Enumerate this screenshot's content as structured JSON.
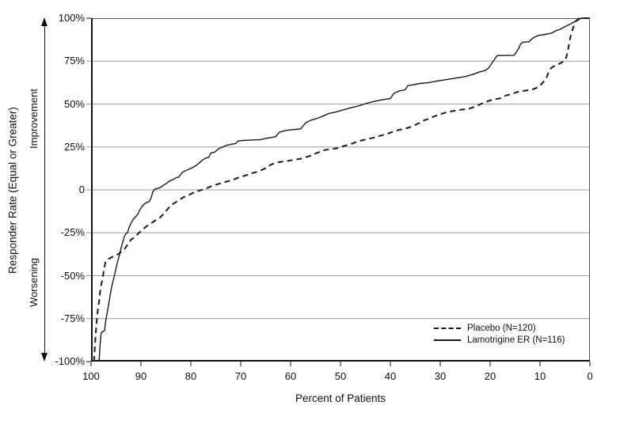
{
  "colors": {
    "background": "#ffffff",
    "line_color": "#1a1a1a",
    "grid_color": "#9e9e9e",
    "axis_color": "#111111",
    "box_color": "#555555"
  },
  "chart_data": {
    "type": "line",
    "title": "",
    "xlabel": "Percent of Patients",
    "ylabel": "Responder Rate (Equal or Greater)",
    "ylabel_upper": "Improvement",
    "ylabel_lower": "Worsening",
    "grid": true,
    "x_axis": {
      "min": 0,
      "max": 100,
      "reversed": true,
      "tick_values": [
        100,
        90,
        80,
        70,
        60,
        50,
        40,
        30,
        20,
        10,
        0
      ],
      "tick_labels": [
        "100",
        "90",
        "80",
        "70",
        "60",
        "50",
        "40",
        "30",
        "20",
        "10",
        "0"
      ]
    },
    "y_axis": {
      "min": -100,
      "max": 100,
      "tick_values": [
        100,
        75,
        50,
        25,
        0,
        -25,
        -50,
        -75,
        -100
      ],
      "tick_labels": [
        "100%",
        "75%",
        "50%",
        "25%",
        "0",
        "-25%",
        "-50%",
        "-75%",
        "-100%"
      ]
    },
    "legend": {
      "position": "inside-bottom-right",
      "entries": [
        {
          "label": "Placebo (N=120)",
          "style": "dashed"
        },
        {
          "label": "Lamotrigine ER (N=116)",
          "style": "solid"
        }
      ]
    },
    "series": [
      {
        "name": "Placebo (N=120)",
        "style": "dashed",
        "points": [
          [
            99.4,
            -100
          ],
          [
            99.2,
            -90
          ],
          [
            99.0,
            -81
          ],
          [
            98.8,
            -74
          ],
          [
            98.6,
            -69
          ],
          [
            98.4,
            -65
          ],
          [
            98.2,
            -60
          ],
          [
            98.0,
            -56
          ],
          [
            97.8,
            -53
          ],
          [
            97.6,
            -50
          ],
          [
            97.4,
            -46
          ],
          [
            97.1,
            -42
          ],
          [
            96.7,
            -40.5
          ],
          [
            96.0,
            -39.5
          ],
          [
            95.3,
            -38.5
          ],
          [
            94.6,
            -37.5
          ],
          [
            93.9,
            -36
          ],
          [
            93.3,
            -34.5
          ],
          [
            92.7,
            -32
          ],
          [
            92.0,
            -29
          ],
          [
            91.2,
            -27.5
          ],
          [
            90.4,
            -25
          ],
          [
            89.6,
            -23
          ],
          [
            88.8,
            -21
          ],
          [
            88.0,
            -19.5
          ],
          [
            87.1,
            -17.8
          ],
          [
            86.2,
            -16.2
          ],
          [
            85.3,
            -13.5
          ],
          [
            84.6,
            -11
          ],
          [
            84.0,
            -9
          ],
          [
            83.2,
            -7.5
          ],
          [
            82.4,
            -6
          ],
          [
            81.4,
            -4.2
          ],
          [
            80.4,
            -3
          ],
          [
            79.4,
            -1.5
          ],
          [
            78.4,
            -0.5
          ],
          [
            77.6,
            0.2
          ],
          [
            76.6,
            1.2
          ],
          [
            75.6,
            2.5
          ],
          [
            74.6,
            3.3
          ],
          [
            73.6,
            4.2
          ],
          [
            72.6,
            5
          ],
          [
            71.6,
            5.8
          ],
          [
            70.6,
            7
          ],
          [
            69.6,
            7.9
          ],
          [
            68.6,
            8.8
          ],
          [
            67.6,
            9.8
          ],
          [
            66.6,
            10.6
          ],
          [
            65.6,
            11.8
          ],
          [
            64.8,
            13
          ],
          [
            64.0,
            14.6
          ],
          [
            63.0,
            15.8
          ],
          [
            62.0,
            16.3
          ],
          [
            61.0,
            16.6
          ],
          [
            60.0,
            17.2
          ],
          [
            59.0,
            17.7
          ],
          [
            58.0,
            18.1
          ],
          [
            57.0,
            19
          ],
          [
            56.0,
            19.9
          ],
          [
            55.0,
            21.2
          ],
          [
            54.0,
            22.3
          ],
          [
            53.2,
            23.2
          ],
          [
            52.4,
            23.6
          ],
          [
            51.6,
            23.9
          ],
          [
            50.8,
            24.2
          ],
          [
            50.0,
            25
          ],
          [
            49.0,
            25.8
          ],
          [
            48.0,
            26.6
          ],
          [
            47.0,
            27.7
          ],
          [
            46.0,
            28.6
          ],
          [
            45.0,
            29.3
          ],
          [
            44.2,
            29.8
          ],
          [
            43.2,
            30.5
          ],
          [
            42.2,
            31.4
          ],
          [
            41.2,
            32.2
          ],
          [
            40.2,
            33.1
          ],
          [
            39.2,
            34.3
          ],
          [
            38.2,
            35
          ],
          [
            37.2,
            35.5
          ],
          [
            36.2,
            36.4
          ],
          [
            35.2,
            37.5
          ],
          [
            34.2,
            39
          ],
          [
            33.2,
            40.5
          ],
          [
            32.2,
            41.5
          ],
          [
            31.2,
            42.8
          ],
          [
            30.2,
            43.8
          ],
          [
            29.2,
            44.8
          ],
          [
            28.2,
            45.5
          ],
          [
            27.2,
            46.1
          ],
          [
            26.2,
            46.6
          ],
          [
            25.2,
            46.9
          ],
          [
            24.2,
            47.3
          ],
          [
            23.2,
            48.3
          ],
          [
            22.4,
            49.3
          ],
          [
            21.7,
            50.2
          ],
          [
            20.8,
            51.3
          ],
          [
            19.8,
            52.3
          ],
          [
            18.8,
            52.9
          ],
          [
            18.0,
            53.3
          ],
          [
            17.0,
            54.8
          ],
          [
            16.0,
            55.6
          ],
          [
            15.0,
            56.6
          ],
          [
            14.0,
            57.4
          ],
          [
            13.0,
            57.8
          ],
          [
            12.0,
            58.2
          ],
          [
            11.0,
            59
          ],
          [
            10.3,
            60
          ],
          [
            9.6,
            62
          ],
          [
            9.0,
            64
          ],
          [
            8.6,
            66
          ],
          [
            8.3,
            68.5
          ],
          [
            7.9,
            70.5
          ],
          [
            7.4,
            71.8
          ],
          [
            6.8,
            72.6
          ],
          [
            6.2,
            73.3
          ],
          [
            5.6,
            74.3
          ],
          [
            5.0,
            75.5
          ],
          [
            4.7,
            77.5
          ],
          [
            4.5,
            80
          ],
          [
            4.3,
            83
          ],
          [
            4.1,
            86
          ],
          [
            3.9,
            89
          ],
          [
            3.7,
            91.5
          ],
          [
            3.4,
            94
          ],
          [
            3.1,
            96.5
          ],
          [
            2.8,
            98.3
          ],
          [
            2.4,
            99.5
          ],
          [
            2.0,
            100
          ],
          [
            0,
            100
          ]
        ]
      },
      {
        "name": "Lamotrigine ER (N=116)",
        "style": "solid",
        "points": [
          [
            98.4,
            -100
          ],
          [
            98.2,
            -91
          ],
          [
            98.0,
            -84
          ],
          [
            97.9,
            -83
          ],
          [
            97.3,
            -82
          ],
          [
            97.1,
            -77
          ],
          [
            96.8,
            -72
          ],
          [
            96.5,
            -67
          ],
          [
            96.2,
            -62
          ],
          [
            95.9,
            -57
          ],
          [
            95.5,
            -52
          ],
          [
            95.1,
            -47
          ],
          [
            94.7,
            -42
          ],
          [
            94.3,
            -38
          ],
          [
            94.0,
            -34
          ],
          [
            93.6,
            -30
          ],
          [
            93.3,
            -27
          ],
          [
            93.0,
            -25.5
          ],
          [
            92.7,
            -25
          ],
          [
            92.4,
            -22
          ],
          [
            92.0,
            -19.5
          ],
          [
            91.5,
            -17
          ],
          [
            91.0,
            -15.5
          ],
          [
            90.6,
            -14
          ],
          [
            90.2,
            -11.5
          ],
          [
            89.6,
            -9
          ],
          [
            89.0,
            -7.5
          ],
          [
            88.4,
            -7
          ],
          [
            88.0,
            -5
          ],
          [
            87.6,
            -1
          ],
          [
            87.2,
            0.5
          ],
          [
            86.4,
            1
          ],
          [
            85.8,
            2
          ],
          [
            85.4,
            3
          ],
          [
            85.0,
            3.5
          ],
          [
            84.4,
            5
          ],
          [
            83.6,
            6
          ],
          [
            83.0,
            7
          ],
          [
            82.4,
            7.5
          ],
          [
            81.8,
            10
          ],
          [
            81.2,
            11
          ],
          [
            80.4,
            12
          ],
          [
            79.6,
            13
          ],
          [
            78.8,
            14.5
          ],
          [
            78.2,
            16
          ],
          [
            77.6,
            17.5
          ],
          [
            77.0,
            18.5
          ],
          [
            76.4,
            19
          ],
          [
            76.0,
            21.5
          ],
          [
            75.2,
            22
          ],
          [
            74.4,
            24
          ],
          [
            73.6,
            25
          ],
          [
            72.8,
            26
          ],
          [
            72.0,
            26.5
          ],
          [
            71.0,
            27
          ],
          [
            70.5,
            28.5
          ],
          [
            69.5,
            28.8
          ],
          [
            68.0,
            29
          ],
          [
            66.0,
            29.3
          ],
          [
            65.0,
            30
          ],
          [
            64.0,
            30.4
          ],
          [
            63.0,
            31
          ],
          [
            62.3,
            33.5
          ],
          [
            61.0,
            34.6
          ],
          [
            59.5,
            35.1
          ],
          [
            58.0,
            35.5
          ],
          [
            57.0,
            39
          ],
          [
            56.0,
            40.5
          ],
          [
            54.8,
            41.5
          ],
          [
            53.5,
            43
          ],
          [
            52.3,
            44.5
          ],
          [
            51.0,
            45.3
          ],
          [
            49.5,
            46.5
          ],
          [
            48.0,
            47.8
          ],
          [
            46.5,
            48.8
          ],
          [
            45.2,
            50
          ],
          [
            44.0,
            51
          ],
          [
            42.5,
            52
          ],
          [
            41.0,
            52.8
          ],
          [
            40.0,
            53.2
          ],
          [
            39.3,
            56.2
          ],
          [
            38.2,
            57.6
          ],
          [
            37.0,
            58.4
          ],
          [
            36.5,
            60.7
          ],
          [
            35.5,
            61.2
          ],
          [
            34.0,
            62
          ],
          [
            32.5,
            62.4
          ],
          [
            31.0,
            63.2
          ],
          [
            29.5,
            63.9
          ],
          [
            28.0,
            64.6
          ],
          [
            26.5,
            65.3
          ],
          [
            25.0,
            66
          ],
          [
            23.5,
            67.2
          ],
          [
            22.0,
            68.8
          ],
          [
            21.0,
            69.5
          ],
          [
            20.3,
            71
          ],
          [
            19.6,
            74
          ],
          [
            19.0,
            76.5
          ],
          [
            18.6,
            78.2
          ],
          [
            15.2,
            78.4
          ],
          [
            14.8,
            80
          ],
          [
            14.3,
            82.3
          ],
          [
            13.9,
            84.8
          ],
          [
            13.5,
            86
          ],
          [
            12.2,
            86.3
          ],
          [
            11.5,
            88.3
          ],
          [
            10.5,
            89.8
          ],
          [
            9.5,
            90.3
          ],
          [
            8.5,
            90.8
          ],
          [
            7.5,
            91.5
          ],
          [
            7.0,
            92.5
          ],
          [
            6.0,
            93.5
          ],
          [
            5.0,
            95
          ],
          [
            4.0,
            96.5
          ],
          [
            3.0,
            98
          ],
          [
            2.3,
            99
          ],
          [
            1.8,
            100
          ],
          [
            0,
            100
          ]
        ]
      }
    ]
  }
}
